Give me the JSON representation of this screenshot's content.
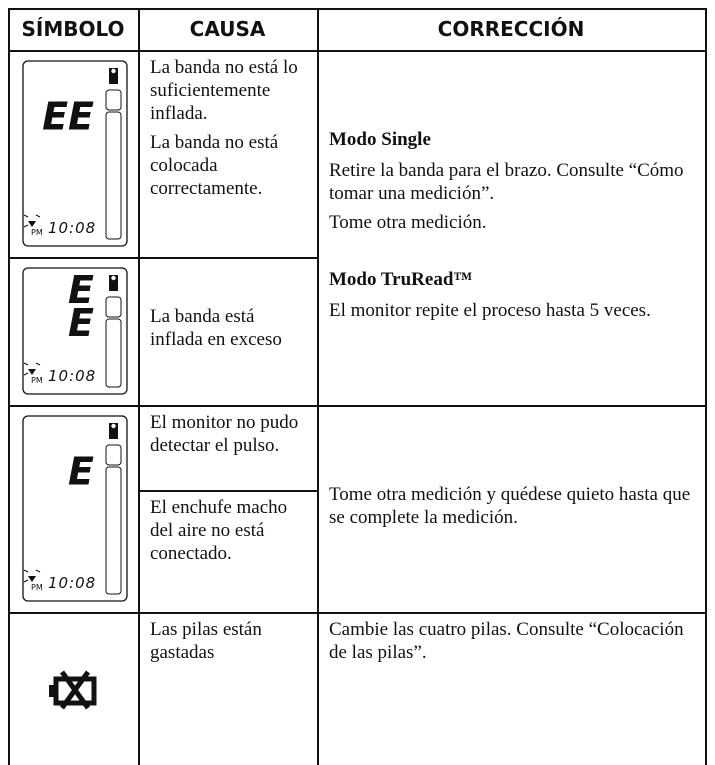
{
  "header": {
    "columns": [
      "SÍMBOLO",
      "CAUSA",
      "CORRECCIÓN"
    ]
  },
  "rows": [
    {
      "symbol": {
        "display": [
          "EE"
        ],
        "period": "PM",
        "time": "10:08"
      },
      "causes": [
        "La banda no está lo suficientemente inflada.",
        "La banda no está colocada correctamente."
      ]
    },
    {
      "symbol": {
        "display": [
          "E",
          "E"
        ],
        "period": "PM",
        "time": "10:08"
      },
      "causes": [
        "La banda está inflada en exceso"
      ]
    },
    {
      "symbol": {
        "display": [
          "E"
        ],
        "period": "PM",
        "time": "10:08"
      },
      "causes": [
        "El monitor no pudo detectar el pulso.",
        "El enchufe macho del aire no está conectado."
      ]
    },
    {
      "symbol": {
        "icon": "battery"
      },
      "causes": [
        "Las pilas están gastadas"
      ]
    }
  ],
  "corrections": [
    {
      "blocks": [
        {
          "heading": "Modo Single",
          "paragraphs": [
            "Retire la banda para el brazo. Consulte “Cómo tomar una medición”.",
            "Tome otra medición."
          ]
        },
        {
          "heading": "Modo TruRead™",
          "paragraphs": [
            "El monitor repite el proceso hasta 5 veces."
          ]
        }
      ]
    },
    {
      "blocks": [
        {
          "paragraphs": [
            "Tome otra medición y quédese quieto hasta que se complete la medición."
          ]
        }
      ]
    },
    {
      "blocks": [
        {
          "paragraphs": [
            "Cambie las cuatro pilas. Consulte “Colocación de las pilas”."
          ]
        }
      ]
    }
  ]
}
